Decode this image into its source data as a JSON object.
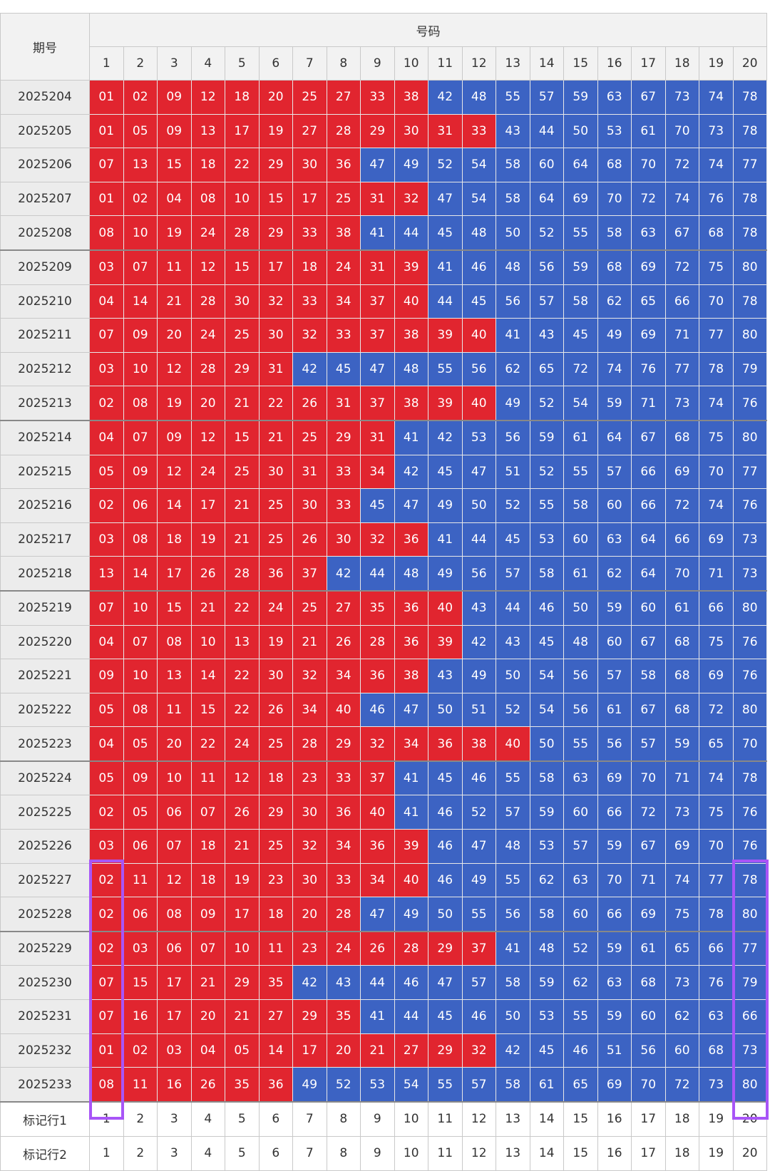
{
  "header": {
    "period_label": "期号",
    "numbers_label": "号码",
    "columns": [
      1,
      2,
      3,
      4,
      5,
      6,
      7,
      8,
      9,
      10,
      11,
      12,
      13,
      14,
      15,
      16,
      17,
      18,
      19,
      20
    ]
  },
  "rows": [
    {
      "period": "2025204",
      "numbers": [
        "01",
        "02",
        "09",
        "12",
        "18",
        "20",
        "25",
        "27",
        "33",
        "38",
        "42",
        "48",
        "55",
        "57",
        "59",
        "63",
        "67",
        "73",
        "74",
        "78"
      ]
    },
    {
      "period": "2025205",
      "numbers": [
        "01",
        "05",
        "09",
        "13",
        "17",
        "19",
        "27",
        "28",
        "29",
        "30",
        "31",
        "33",
        "43",
        "44",
        "50",
        "53",
        "61",
        "70",
        "73",
        "78"
      ]
    },
    {
      "period": "2025206",
      "numbers": [
        "07",
        "13",
        "15",
        "18",
        "22",
        "29",
        "30",
        "36",
        "47",
        "49",
        "52",
        "54",
        "58",
        "60",
        "64",
        "68",
        "70",
        "72",
        "74",
        "77"
      ]
    },
    {
      "period": "2025207",
      "numbers": [
        "01",
        "02",
        "04",
        "08",
        "10",
        "15",
        "17",
        "25",
        "31",
        "32",
        "47",
        "54",
        "58",
        "64",
        "69",
        "70",
        "72",
        "74",
        "76",
        "78"
      ]
    },
    {
      "period": "2025208",
      "numbers": [
        "08",
        "10",
        "19",
        "24",
        "28",
        "29",
        "33",
        "38",
        "41",
        "44",
        "45",
        "48",
        "50",
        "52",
        "55",
        "58",
        "63",
        "67",
        "68",
        "78"
      ]
    },
    {
      "period": "2025209",
      "numbers": [
        "03",
        "07",
        "11",
        "12",
        "15",
        "17",
        "18",
        "24",
        "31",
        "39",
        "41",
        "46",
        "48",
        "56",
        "59",
        "68",
        "69",
        "72",
        "75",
        "80"
      ]
    },
    {
      "period": "2025210",
      "numbers": [
        "04",
        "14",
        "21",
        "28",
        "30",
        "32",
        "33",
        "34",
        "37",
        "40",
        "44",
        "45",
        "56",
        "57",
        "58",
        "62",
        "65",
        "66",
        "70",
        "78"
      ]
    },
    {
      "period": "2025211",
      "numbers": [
        "07",
        "09",
        "20",
        "24",
        "25",
        "30",
        "32",
        "33",
        "37",
        "38",
        "39",
        "40",
        "41",
        "43",
        "45",
        "49",
        "69",
        "71",
        "77",
        "80"
      ]
    },
    {
      "period": "2025212",
      "numbers": [
        "03",
        "10",
        "12",
        "28",
        "29",
        "31",
        "42",
        "45",
        "47",
        "48",
        "55",
        "56",
        "62",
        "65",
        "72",
        "74",
        "76",
        "77",
        "78",
        "79"
      ]
    },
    {
      "period": "2025213",
      "numbers": [
        "02",
        "08",
        "19",
        "20",
        "21",
        "22",
        "26",
        "31",
        "37",
        "38",
        "39",
        "40",
        "49",
        "52",
        "54",
        "59",
        "71",
        "73",
        "74",
        "76"
      ]
    },
    {
      "period": "2025214",
      "numbers": [
        "04",
        "07",
        "09",
        "12",
        "15",
        "21",
        "25",
        "29",
        "31",
        "41",
        "42",
        "53",
        "56",
        "59",
        "61",
        "64",
        "67",
        "68",
        "75",
        "80"
      ]
    },
    {
      "period": "2025215",
      "numbers": [
        "05",
        "09",
        "12",
        "24",
        "25",
        "30",
        "31",
        "33",
        "34",
        "42",
        "45",
        "47",
        "51",
        "52",
        "55",
        "57",
        "66",
        "69",
        "70",
        "77"
      ]
    },
    {
      "period": "2025216",
      "numbers": [
        "02",
        "06",
        "14",
        "17",
        "21",
        "25",
        "30",
        "33",
        "45",
        "47",
        "49",
        "50",
        "52",
        "55",
        "58",
        "60",
        "66",
        "72",
        "74",
        "76"
      ]
    },
    {
      "period": "2025217",
      "numbers": [
        "03",
        "08",
        "18",
        "19",
        "21",
        "25",
        "26",
        "30",
        "32",
        "36",
        "41",
        "44",
        "45",
        "53",
        "60",
        "63",
        "64",
        "66",
        "69",
        "73"
      ]
    },
    {
      "period": "2025218",
      "numbers": [
        "13",
        "14",
        "17",
        "26",
        "28",
        "36",
        "37",
        "42",
        "44",
        "48",
        "49",
        "56",
        "57",
        "58",
        "61",
        "62",
        "64",
        "70",
        "71",
        "73"
      ]
    },
    {
      "period": "2025219",
      "numbers": [
        "07",
        "10",
        "15",
        "21",
        "22",
        "24",
        "25",
        "27",
        "35",
        "36",
        "40",
        "43",
        "44",
        "46",
        "50",
        "59",
        "60",
        "61",
        "66",
        "80"
      ]
    },
    {
      "period": "2025220",
      "numbers": [
        "04",
        "07",
        "08",
        "10",
        "13",
        "19",
        "21",
        "26",
        "28",
        "36",
        "39",
        "42",
        "43",
        "45",
        "48",
        "60",
        "67",
        "68",
        "75",
        "76"
      ]
    },
    {
      "period": "2025221",
      "numbers": [
        "09",
        "10",
        "13",
        "14",
        "22",
        "30",
        "32",
        "34",
        "36",
        "38",
        "43",
        "49",
        "50",
        "54",
        "56",
        "57",
        "58",
        "68",
        "69",
        "76"
      ]
    },
    {
      "period": "2025222",
      "numbers": [
        "05",
        "08",
        "11",
        "15",
        "22",
        "26",
        "34",
        "40",
        "46",
        "47",
        "50",
        "51",
        "52",
        "54",
        "56",
        "61",
        "67",
        "68",
        "72",
        "80"
      ]
    },
    {
      "period": "2025223",
      "numbers": [
        "04",
        "05",
        "20",
        "22",
        "24",
        "25",
        "28",
        "29",
        "32",
        "34",
        "36",
        "38",
        "40",
        "50",
        "55",
        "56",
        "57",
        "59",
        "65",
        "70"
      ]
    },
    {
      "period": "2025224",
      "numbers": [
        "05",
        "09",
        "10",
        "11",
        "12",
        "18",
        "23",
        "33",
        "37",
        "41",
        "45",
        "46",
        "55",
        "58",
        "63",
        "69",
        "70",
        "71",
        "74",
        "78"
      ]
    },
    {
      "period": "2025225",
      "numbers": [
        "02",
        "05",
        "06",
        "07",
        "26",
        "29",
        "30",
        "36",
        "40",
        "41",
        "46",
        "52",
        "57",
        "59",
        "60",
        "66",
        "72",
        "73",
        "75",
        "76"
      ]
    },
    {
      "period": "2025226",
      "numbers": [
        "03",
        "06",
        "07",
        "18",
        "21",
        "25",
        "32",
        "34",
        "36",
        "39",
        "46",
        "47",
        "48",
        "53",
        "57",
        "59",
        "67",
        "69",
        "70",
        "76"
      ]
    },
    {
      "period": "2025227",
      "numbers": [
        "02",
        "11",
        "12",
        "18",
        "19",
        "23",
        "30",
        "33",
        "34",
        "40",
        "46",
        "49",
        "55",
        "62",
        "63",
        "70",
        "71",
        "74",
        "77",
        "78"
      ]
    },
    {
      "period": "2025228",
      "numbers": [
        "02",
        "06",
        "08",
        "09",
        "17",
        "18",
        "20",
        "28",
        "47",
        "49",
        "50",
        "55",
        "56",
        "58",
        "60",
        "66",
        "69",
        "75",
        "78",
        "80"
      ]
    },
    {
      "period": "2025229",
      "numbers": [
        "02",
        "03",
        "06",
        "07",
        "10",
        "11",
        "23",
        "24",
        "26",
        "28",
        "29",
        "37",
        "41",
        "48",
        "52",
        "59",
        "61",
        "65",
        "66",
        "77"
      ]
    },
    {
      "period": "2025230",
      "numbers": [
        "07",
        "15",
        "17",
        "21",
        "29",
        "35",
        "42",
        "43",
        "44",
        "46",
        "47",
        "57",
        "58",
        "59",
        "62",
        "63",
        "68",
        "73",
        "76",
        "79"
      ]
    },
    {
      "period": "2025231",
      "numbers": [
        "07",
        "16",
        "17",
        "20",
        "21",
        "27",
        "29",
        "35",
        "41",
        "44",
        "45",
        "46",
        "50",
        "53",
        "55",
        "59",
        "60",
        "62",
        "63",
        "66"
      ]
    },
    {
      "period": "2025232",
      "numbers": [
        "01",
        "02",
        "03",
        "04",
        "05",
        "14",
        "17",
        "20",
        "21",
        "27",
        "29",
        "32",
        "42",
        "45",
        "46",
        "51",
        "56",
        "60",
        "68",
        "73"
      ]
    },
    {
      "period": "2025233",
      "numbers": [
        "08",
        "11",
        "16",
        "26",
        "35",
        "36",
        "49",
        "52",
        "53",
        "54",
        "55",
        "57",
        "58",
        "61",
        "65",
        "69",
        "70",
        "72",
        "73",
        "80"
      ]
    }
  ],
  "footer": [
    {
      "label": "标记行1",
      "values": [
        1,
        2,
        3,
        4,
        5,
        6,
        7,
        8,
        9,
        10,
        11,
        12,
        13,
        14,
        15,
        16,
        17,
        18,
        19,
        20
      ]
    },
    {
      "label": "标记行2",
      "values": [
        1,
        2,
        3,
        4,
        5,
        6,
        7,
        8,
        9,
        10,
        11,
        12,
        13,
        14,
        15,
        16,
        17,
        18,
        19,
        20
      ]
    }
  ]
}
